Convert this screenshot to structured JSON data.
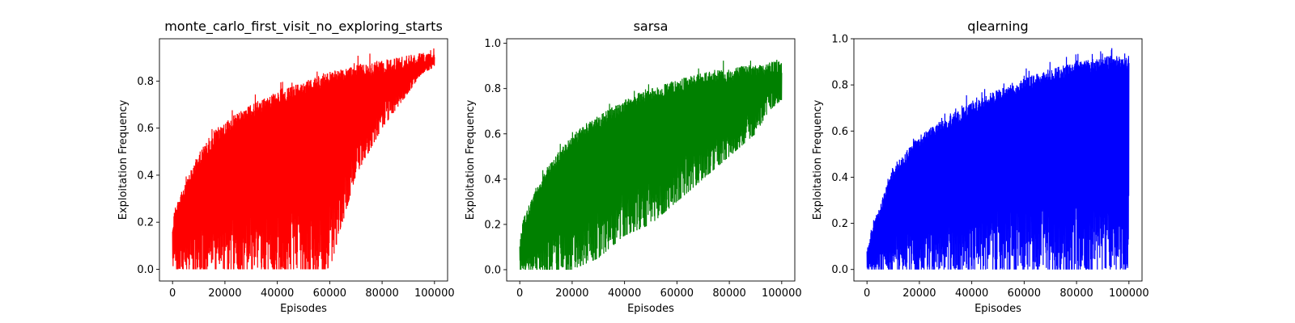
{
  "chart_data": [
    {
      "type": "line",
      "title": "monte_carlo_first_visit_no_exploring_starts",
      "xlabel": "Episodes",
      "ylabel": "Exploitation Frequency",
      "xlim": [
        -5000,
        105000
      ],
      "ylim": [
        -0.05,
        0.98
      ],
      "xticks": [
        0,
        20000,
        40000,
        60000,
        80000,
        100000
      ],
      "yticks": [
        0.0,
        0.2,
        0.4,
        0.6,
        0.8
      ],
      "ytick_format": 1,
      "color": "#ff0000",
      "series": [
        {
          "x": [
            0,
            1000,
            2000,
            5000,
            10000,
            20000,
            30000,
            40000,
            50000,
            60000,
            70000,
            80000,
            90000,
            95000,
            100000
          ],
          "upper": [
            0.2,
            0.27,
            0.3,
            0.37,
            0.5,
            0.63,
            0.7,
            0.76,
            0.8,
            0.84,
            0.87,
            0.89,
            0.91,
            0.92,
            0.93
          ],
          "lower": [
            0.0,
            0.0,
            0.0,
            0.0,
            0.0,
            0.0,
            0.0,
            0.0,
            0.0,
            0.0,
            0.4,
            0.6,
            0.75,
            0.83,
            0.86
          ]
        }
      ]
    },
    {
      "type": "line",
      "title": "sarsa",
      "xlabel": "Episodes",
      "ylabel": "Exploitation Frequency",
      "xlim": [
        -5000,
        105000
      ],
      "ylim": [
        -0.05,
        1.02
      ],
      "xticks": [
        0,
        20000,
        40000,
        60000,
        80000,
        100000
      ],
      "yticks": [
        0.0,
        0.2,
        0.4,
        0.6,
        0.8,
        1.0
      ],
      "ytick_format": 1,
      "color": "#008000",
      "series": [
        {
          "x": [
            0,
            1000,
            2000,
            5000,
            10000,
            20000,
            30000,
            40000,
            50000,
            60000,
            70000,
            80000,
            90000,
            95000,
            100000
          ],
          "upper": [
            0.12,
            0.2,
            0.25,
            0.33,
            0.45,
            0.6,
            0.68,
            0.75,
            0.8,
            0.84,
            0.87,
            0.89,
            0.91,
            0.92,
            0.92
          ],
          "lower": [
            0.0,
            0.0,
            0.0,
            0.0,
            0.0,
            0.0,
            0.05,
            0.15,
            0.2,
            0.3,
            0.4,
            0.5,
            0.6,
            0.7,
            0.75
          ]
        }
      ]
    },
    {
      "type": "line",
      "title": "qlearning",
      "xlabel": "Episodes",
      "ylabel": "Exploitation Frequency",
      "xlim": [
        -5000,
        105000
      ],
      "ylim": [
        -0.05,
        1.0
      ],
      "xticks": [
        0,
        20000,
        40000,
        60000,
        80000,
        100000
      ],
      "yticks": [
        0.0,
        0.2,
        0.4,
        0.6,
        0.8,
        1.0
      ],
      "ytick_format": 1,
      "color": "#0000ff",
      "series": [
        {
          "x": [
            0,
            1000,
            2000,
            5000,
            10000,
            20000,
            30000,
            40000,
            50000,
            60000,
            70000,
            80000,
            90000,
            95000,
            100000
          ],
          "upper": [
            0.08,
            0.14,
            0.2,
            0.28,
            0.45,
            0.58,
            0.66,
            0.73,
            0.78,
            0.83,
            0.87,
            0.9,
            0.92,
            0.93,
            0.93
          ],
          "lower": [
            0.0,
            0.0,
            0.0,
            0.0,
            0.0,
            0.0,
            0.0,
            0.0,
            0.0,
            0.0,
            0.0,
            0.0,
            0.0,
            0.0,
            0.0
          ]
        }
      ]
    }
  ]
}
